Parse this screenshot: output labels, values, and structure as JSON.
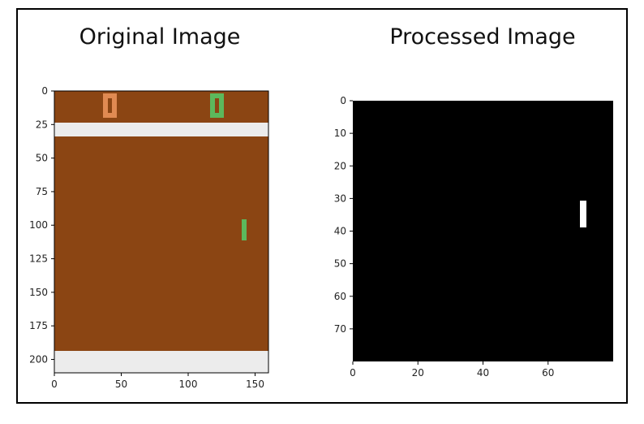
{
  "titles": {
    "left": "Original Image",
    "right": "Processed Image"
  },
  "chart_data": [
    {
      "type": "image",
      "title": "Original Image",
      "xlim": [
        0,
        160
      ],
      "ylim": [
        210,
        0
      ],
      "x_ticks": [
        "0",
        "50",
        "100",
        "150"
      ],
      "y_ticks": [
        "0",
        "25",
        "50",
        "75",
        "100",
        "125",
        "150",
        "175",
        "200"
      ],
      "colors": {
        "background": "#8b4513",
        "band": "#ececec",
        "paddle_orange": "#e08a52",
        "paddle_green": "#5cb85c"
      }
    },
    {
      "type": "image",
      "title": "Processed Image",
      "xlim": [
        0,
        80
      ],
      "ylim": [
        80,
        0
      ],
      "x_ticks": [
        "0",
        "20",
        "40",
        "60"
      ],
      "y_ticks": [
        "0",
        "10",
        "20",
        "30",
        "40",
        "50",
        "60",
        "70"
      ],
      "colors": {
        "background": "#000000",
        "object": "#ffffff"
      }
    }
  ]
}
